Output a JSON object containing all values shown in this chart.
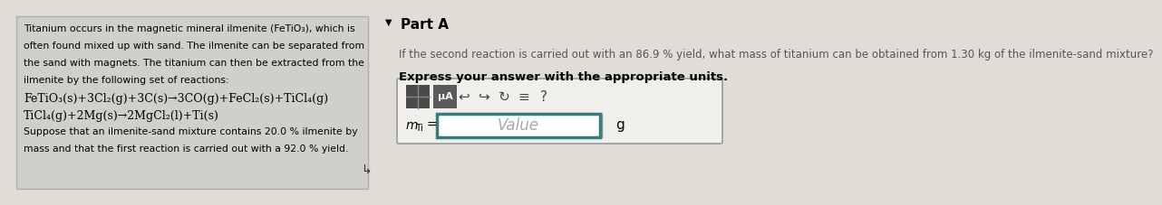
{
  "bg_color": "#e0ddd6",
  "left_box_color": "#d0cfca",
  "left_box_border": "#b0afaa",
  "part_a_label": "Part A",
  "question_text": "If the second reaction is carried out with an 86.9 % yield, what mass of titanium can be obtained from 1.30 kg of the ilmenite-sand mixture?",
  "express_text": "Express your answer with the appropriate units.",
  "line1": "Titanium occurs in the magnetic mineral ilmenite (FeTiO",
  "line1b": "3",
  "line1c": "), which is",
  "line2": "often found mixed up with sand. The ilmenite can be separated from",
  "line3": "the sand with magnets. The titanium can then be extracted from the",
  "line4": "ilmenite by the following set of reactions:",
  "eq1": "FeTiO₃(s)+3Cl₂(g)+3C(s)→3CO(g)+FeCl₂(s)+TiCl₄(g)",
  "eq2": "TiCl₄(g)+2Mg(s)→2MgCl₂(l)+Ti(s)",
  "line7": "Suppose that an ilmenite-sand mixture contains 20.0 % ilmenite by",
  "line8": "mass and that the first reaction is carried out with a 92.0 % yield.",
  "value_text": "Value",
  "unit_text": "g",
  "arrow_down": "▼",
  "cursor": "↲"
}
